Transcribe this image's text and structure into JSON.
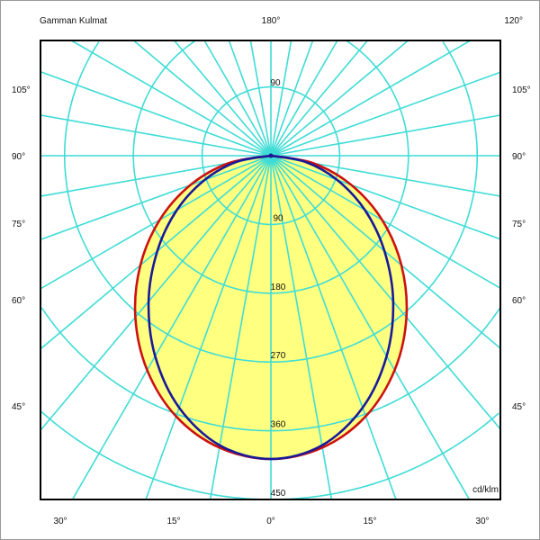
{
  "chart_data": {
    "type": "polar",
    "title": "Gamman Kulmat",
    "unit_label": "cd/klm",
    "radial_ticks": [
      90,
      180,
      270,
      360,
      450
    ],
    "top_ring_label": "90",
    "rlim": [
      0,
      540
    ],
    "angle_step_deg": 10,
    "grid": true,
    "top_labels": {
      "left": "Gamman Kulmat",
      "center": "180°",
      "right": "120°"
    },
    "side_labels": [
      "105°",
      "90°",
      "75°",
      "60°",
      "45°"
    ],
    "bottom_labels": [
      "30°",
      "15°",
      "0°",
      "15°",
      "30°"
    ],
    "angles": [
      0,
      10,
      20,
      30,
      40,
      50,
      60,
      70,
      80,
      90
    ],
    "series": [
      {
        "color": "#cc1111",
        "values": [
          397,
          388,
          363,
          324,
          276,
          223,
          168,
          112,
          56,
          0
        ]
      },
      {
        "color": "#1a1a99",
        "values": [
          397,
          385,
          351,
          303,
          249,
          194,
          142,
          92,
          45,
          0
        ]
      }
    ],
    "colors": {
      "grid": "#3fdcd6",
      "fill": "#ffff80",
      "frame": "#000000"
    }
  }
}
